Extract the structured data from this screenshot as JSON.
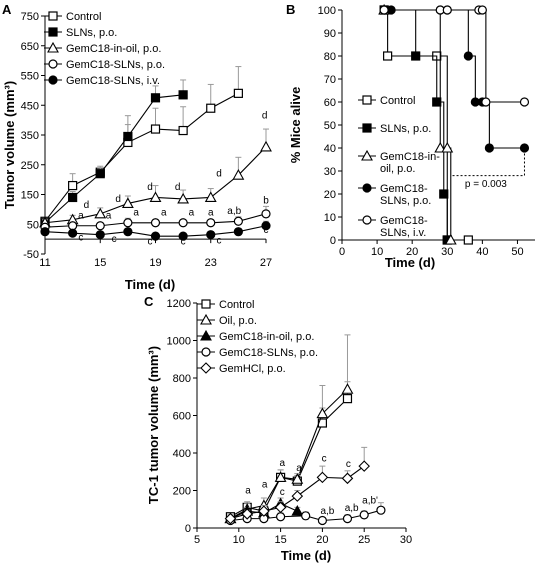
{
  "chart_data": [
    {
      "type": "line",
      "panel": "A",
      "xlabel": "Time (d)",
      "ylabel": "Tumor volume (mm³)",
      "xlim": [
        11,
        27
      ],
      "ylim": [
        -50,
        750
      ],
      "xticks": [
        "11",
        "15",
        "19",
        "23",
        "27"
      ],
      "yticks": [
        "-50",
        "50",
        "150",
        "250",
        "350",
        "450",
        "550",
        "650",
        "750"
      ],
      "legend_position": "top-left",
      "series": [
        {
          "name": "Control",
          "marker": "square-open",
          "x": [
            11,
            13,
            15,
            17,
            19,
            21,
            23,
            25
          ],
          "y": [
            60,
            180,
            225,
            325,
            370,
            365,
            440,
            490
          ],
          "err": [
            10,
            40,
            20,
            90,
            70,
            80,
            80,
            90
          ]
        },
        {
          "name": "SLNs, p.o.",
          "marker": "square-filled",
          "x": [
            11,
            13,
            15,
            17,
            19,
            21
          ],
          "y": [
            55,
            140,
            220,
            345,
            475,
            485
          ],
          "err": [
            10,
            20,
            20,
            40,
            40,
            50
          ]
        },
        {
          "name": "GemC18-in-oil, p.o.",
          "marker": "triangle-open",
          "x": [
            11,
            13,
            15,
            17,
            19,
            21,
            23,
            25,
            27
          ],
          "y": [
            55,
            65,
            85,
            120,
            140,
            135,
            140,
            215,
            310
          ],
          "err": [
            10,
            15,
            20,
            25,
            40,
            30,
            30,
            60,
            60
          ]
        },
        {
          "name": "GemC18-SLNs, p.o.",
          "marker": "circle-open",
          "x": [
            11,
            13,
            15,
            17,
            19,
            21,
            23,
            25,
            27
          ],
          "y": [
            40,
            45,
            45,
            55,
            55,
            55,
            55,
            60,
            85
          ],
          "err": [
            10,
            10,
            10,
            15,
            10,
            10,
            10,
            15,
            25
          ]
        },
        {
          "name": "GemC18-SLNs, i.v.",
          "marker": "circle-filled",
          "x": [
            11,
            13,
            15,
            17,
            19,
            21,
            23,
            25,
            27
          ],
          "y": [
            25,
            20,
            15,
            25,
            10,
            10,
            15,
            25,
            45
          ],
          "err": [
            10,
            10,
            10,
            10,
            10,
            10,
            10,
            10,
            15
          ]
        }
      ],
      "annotations": [
        {
          "text": "d",
          "x": 14,
          "y": 105
        },
        {
          "text": "a",
          "x": 13.6,
          "y": 70
        },
        {
          "text": "a",
          "x": 15.6,
          "y": 70
        },
        {
          "text": "c",
          "x": 13.6,
          "y": -5
        },
        {
          "text": "c",
          "x": 16,
          "y": -10
        },
        {
          "text": "d",
          "x": 16.3,
          "y": 125
        },
        {
          "text": "a",
          "x": 17.6,
          "y": 80
        },
        {
          "text": "c",
          "x": 18.6,
          "y": -18
        },
        {
          "text": "d",
          "x": 18.6,
          "y": 165
        },
        {
          "text": "a",
          "x": 19.6,
          "y": 80
        },
        {
          "text": "c",
          "x": 21,
          "y": -18
        },
        {
          "text": "d",
          "x": 20.6,
          "y": 165
        },
        {
          "text": "a",
          "x": 21.6,
          "y": 80
        },
        {
          "text": "c",
          "x": 23.6,
          "y": -15
        },
        {
          "text": "d",
          "x": 23.6,
          "y": 210
        },
        {
          "text": "a",
          "x": 23,
          "y": 80
        },
        {
          "text": "a,b",
          "x": 24.7,
          "y": 85
        },
        {
          "text": "d",
          "x": 26.9,
          "y": 405
        },
        {
          "text": "b",
          "x": 27,
          "y": 120
        },
        {
          "text": "c",
          "x": 27,
          "y": 20
        }
      ]
    },
    {
      "type": "line",
      "panel": "B",
      "xlabel": "Time (d)",
      "ylabel": "% Mice alive",
      "xlim": [
        0,
        55
      ],
      "ylim": [
        0,
        100
      ],
      "xticks": [
        "0",
        "10",
        "20",
        "30",
        "40",
        "50"
      ],
      "yticks": [
        "0",
        "10",
        "20",
        "30",
        "40",
        "50",
        "60",
        "70",
        "80",
        "90",
        "100"
      ],
      "legend_position": "left-center",
      "series": [
        {
          "name": "Control",
          "marker": "square-open",
          "x": [
            12,
            13,
            27,
            30,
            36
          ],
          "y": [
            100,
            80,
            80,
            0,
            0
          ]
        },
        {
          "name": "SLNs, p.o.",
          "marker": "square-filled",
          "x": [
            12,
            21,
            27,
            29,
            30
          ],
          "y": [
            100,
            80,
            60,
            20,
            0
          ]
        },
        {
          "name": "GemC18-in-oil, p.o.",
          "marker": "triangle-open",
          "x": [
            12,
            28,
            30,
            31
          ],
          "y": [
            100,
            40,
            40,
            0
          ]
        },
        {
          "name": "GemC18-SLNs, p.o.",
          "marker": "circle-filled",
          "x": [
            12,
            14,
            28,
            30,
            36,
            38,
            40,
            42,
            52
          ],
          "y": [
            100,
            100,
            100,
            100,
            80,
            60,
            60,
            40,
            40
          ]
        },
        {
          "name": "GemC18-SLNs, i.v.",
          "marker": "circle-open",
          "x": [
            12,
            28,
            30,
            39,
            40,
            41,
            52
          ],
          "y": [
            100,
            100,
            100,
            100,
            100,
            60,
            60
          ]
        }
      ],
      "annotations": [
        {
          "text": "p = 0.003",
          "x": 41,
          "y": 23
        }
      ]
    },
    {
      "type": "line",
      "panel": "C",
      "xlabel": "Time (d)",
      "ylabel": "TC-1 tumor volume (mm³)",
      "xlim": [
        5,
        30
      ],
      "ylim": [
        0,
        1200
      ],
      "xticks": [
        "5",
        "10",
        "15",
        "20",
        "25",
        "30"
      ],
      "yticks": [
        "0",
        "200",
        "400",
        "600",
        "800",
        "1000",
        "1200"
      ],
      "legend_position": "top-left",
      "series": [
        {
          "name": "Control",
          "marker": "square-open",
          "x": [
            9,
            11,
            13,
            15,
            17,
            20,
            23
          ],
          "y": [
            60,
            110,
            90,
            270,
            250,
            560,
            690
          ],
          "err": [
            20,
            30,
            30,
            40,
            30,
            80,
            90
          ]
        },
        {
          "name": "Oil, p.o.",
          "marker": "triangle-open",
          "x": [
            9,
            11,
            13,
            15,
            17,
            20,
            23
          ],
          "y": [
            50,
            100,
            120,
            270,
            260,
            610,
            740
          ],
          "err": [
            20,
            30,
            40,
            40,
            30,
            150,
            290
          ]
        },
        {
          "name": "GemC18-in-oil, p.o.",
          "marker": "triangle-filled",
          "x": [
            9,
            11,
            13,
            15,
            17
          ],
          "y": [
            50,
            90,
            80,
            130,
            90
          ],
          "err": [
            20,
            20,
            20,
            30,
            20
          ]
        },
        {
          "name": "GemC18-SLNs, p.o.",
          "marker": "circle-open",
          "x": [
            9,
            11,
            13,
            15,
            18,
            20,
            23,
            25,
            27
          ],
          "y": [
            40,
            50,
            50,
            60,
            65,
            40,
            50,
            70,
            95
          ],
          "err": [
            15,
            20,
            20,
            20,
            20,
            10,
            20,
            20,
            40
          ]
        },
        {
          "name": "GemHCl, p.o.",
          "marker": "diamond-open",
          "x": [
            9,
            11,
            13,
            15,
            17,
            20,
            23,
            25
          ],
          "y": [
            50,
            75,
            90,
            110,
            170,
            270,
            265,
            330
          ],
          "err": [
            20,
            20,
            30,
            30,
            30,
            60,
            40,
            100
          ]
        }
      ],
      "annotations": [
        {
          "text": "a",
          "x": 11.1,
          "y": 185
        },
        {
          "text": "a",
          "x": 13.1,
          "y": 215
        },
        {
          "text": "a",
          "x": 15.2,
          "y": 330
        },
        {
          "text": "c",
          "x": 15.2,
          "y": 175
        },
        {
          "text": "a",
          "x": 17.2,
          "y": 305
        },
        {
          "text": "c",
          "x": 20.2,
          "y": 355
        },
        {
          "text": "c",
          "x": 23.1,
          "y": 325
        },
        {
          "text": "a,b",
          "x": 20.6,
          "y": 75
        },
        {
          "text": "a,b",
          "x": 23.5,
          "y": 90
        },
        {
          "text": "a,b'",
          "x": 25.7,
          "y": 130
        }
      ]
    }
  ]
}
